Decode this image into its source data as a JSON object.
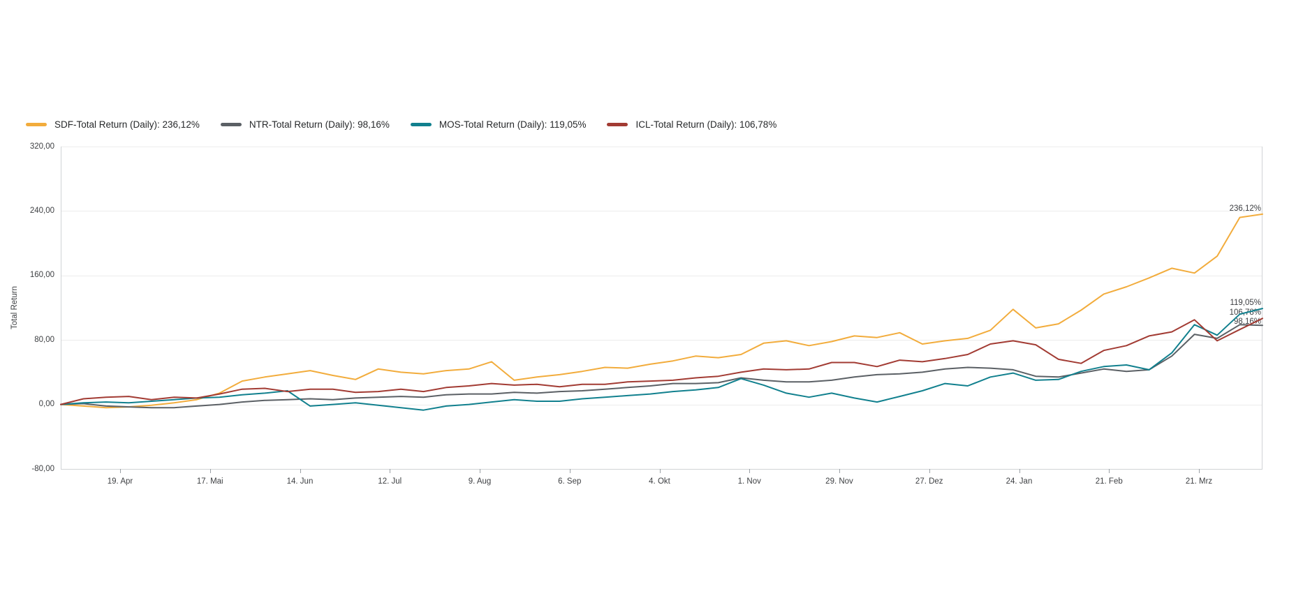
{
  "y_axis_title": "Total Return",
  "chart_data": {
    "type": "line",
    "title": "",
    "ylabel": "Total Return",
    "xlabel": "",
    "ylim": [
      -80,
      320
    ],
    "grid": true,
    "legend_position": "top-left",
    "y_ticks": [
      320,
      240,
      160,
      80,
      0,
      -80
    ],
    "y_tick_labels": [
      "320,00",
      "240,00",
      "160,00",
      "80,00",
      "0,00",
      "-80,00"
    ],
    "x_tick_labels": [
      "19. Apr",
      "17. Mai",
      "14. Jun",
      "12. Jul",
      "9. Aug",
      "6. Sep",
      "4. Okt",
      "1. Nov",
      "29. Nov",
      "27. Dez",
      "24. Jan",
      "21. Feb",
      "21. Mrz"
    ],
    "x_unit": "weekly samples over one year",
    "series": [
      {
        "ticker": "SDF",
        "label": "SDF-Total Return (Daily): 236,12%",
        "color": "#F2AC3C",
        "final_value": 236.12,
        "end_label": "236,12%",
        "values": [
          0,
          -2,
          -4,
          -3,
          -1,
          2,
          6,
          14,
          29,
          34,
          38,
          42,
          36,
          31,
          44,
          40,
          38,
          42,
          44,
          53,
          30,
          34,
          37,
          41,
          46,
          45,
          50,
          54,
          60,
          58,
          62,
          76,
          79,
          73,
          78,
          85,
          83,
          89,
          75,
          79,
          82,
          92,
          118,
          95,
          100,
          117,
          137,
          146,
          157,
          169,
          163,
          184,
          232,
          236.12
        ]
      },
      {
        "ticker": "NTR",
        "label": "NTR-Total Return (Daily): 98,16%",
        "color": "#5B6065",
        "final_value": 98.16,
        "end_label": "98,16%",
        "values": [
          0,
          1,
          -2,
          -3,
          -4,
          -4,
          -2,
          0,
          3,
          5,
          6,
          7,
          6,
          8,
          9,
          10,
          9,
          12,
          13,
          13,
          15,
          14,
          16,
          17,
          19,
          21,
          23,
          26,
          26,
          27,
          33,
          30,
          28,
          28,
          30,
          34,
          37,
          38,
          40,
          44,
          46,
          45,
          43,
          35,
          34,
          39,
          44,
          41,
          43,
          60,
          87,
          82,
          99,
          98.16
        ]
      },
      {
        "ticker": "MOS",
        "label": "MOS-Total Return (Daily): 119,05%",
        "color": "#11808E",
        "final_value": 119.05,
        "end_label": "119,05%",
        "values": [
          0,
          2,
          3,
          2,
          4,
          6,
          8,
          9,
          12,
          14,
          17,
          -2,
          0,
          2,
          -1,
          -4,
          -7,
          -2,
          0,
          3,
          6,
          4,
          4,
          7,
          9,
          11,
          13,
          16,
          18,
          21,
          32,
          24,
          14,
          9,
          14,
          8,
          3,
          10,
          17,
          26,
          23,
          34,
          39,
          30,
          31,
          41,
          47,
          49,
          43,
          64,
          99,
          86,
          112,
          119.05
        ]
      },
      {
        "ticker": "ICL",
        "label": "ICL-Total Return (Daily): 106,78%",
        "color": "#A23B33",
        "final_value": 106.78,
        "end_label": "106,78%",
        "values": [
          0,
          7,
          9,
          10,
          6,
          9,
          8,
          13,
          19,
          20,
          16,
          19,
          19,
          15,
          16,
          19,
          16,
          21,
          23,
          26,
          24,
          25,
          22,
          25,
          25,
          28,
          29,
          30,
          33,
          35,
          40,
          44,
          43,
          44,
          52,
          52,
          47,
          55,
          53,
          57,
          62,
          75,
          79,
          74,
          56,
          51,
          67,
          73,
          85,
          90,
          105,
          79,
          93,
          106.78
        ]
      }
    ],
    "style": {
      "grid_color": "#ececec",
      "border_color": "#d0d3d6",
      "tick_color": "#9aa0a5",
      "text_color": "#3d3f42"
    }
  }
}
